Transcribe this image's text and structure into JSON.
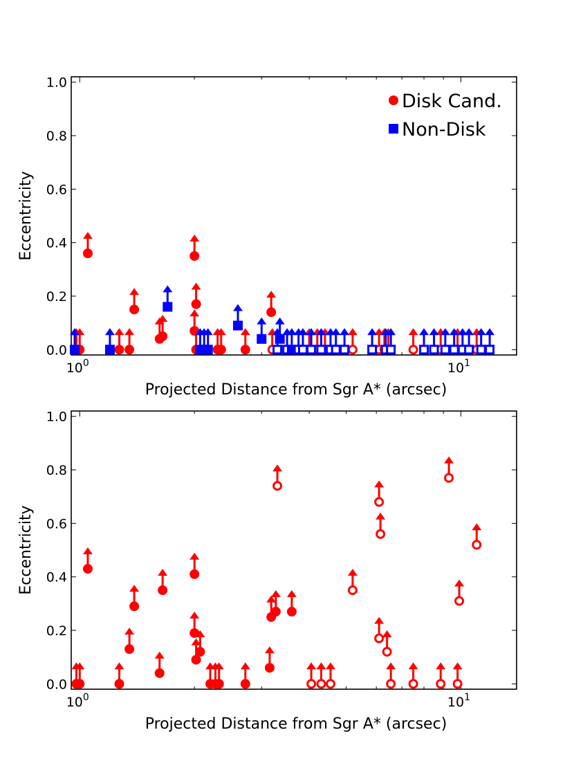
{
  "colors": {
    "disk": "#ff0000",
    "nondisk": "#0000ff"
  },
  "chart_data": [
    {
      "type": "scatter",
      "panel": "top",
      "xscale": "log",
      "xlim": [
        0.95,
        14.0
      ],
      "ylim": [
        -0.02,
        1.02
      ],
      "xlabel": "Projected Distance from Sgr A* (arcsec)",
      "ylabel": "Eccentricity",
      "yticks": [
        "0.0",
        "0.2",
        "0.4",
        "0.6",
        "0.8",
        "1.0"
      ],
      "xticks": [
        {
          "base": "10",
          "exp": "0",
          "value": 1
        },
        {
          "base": "10",
          "exp": "1",
          "value": 10
        }
      ],
      "legend": {
        "position": "top-right",
        "entries": [
          "Disk Cand.",
          "Non-Disk"
        ]
      },
      "series": [
        {
          "name": "Disk Cand.",
          "marker": "circle",
          "color": "#ff0000",
          "points": [
            [
              0.98,
              0.0,
              1
            ],
            [
              1.0,
              0.0,
              1
            ],
            [
              1.05,
              0.36,
              1
            ],
            [
              1.27,
              0.0,
              1
            ],
            [
              1.35,
              0.0,
              1
            ],
            [
              1.39,
              0.15,
              1
            ],
            [
              1.62,
              0.04,
              1
            ],
            [
              1.65,
              0.05,
              1
            ],
            [
              2.0,
              0.35,
              1
            ],
            [
              2.02,
              0.17,
              1
            ],
            [
              2.0,
              0.07,
              1
            ],
            [
              2.02,
              0.0,
              1
            ],
            [
              2.3,
              0.0,
              1
            ],
            [
              2.35,
              0.0,
              1
            ],
            [
              2.72,
              0.0,
              1
            ],
            [
              3.18,
              0.14,
              1
            ],
            [
              3.2,
              0.0,
              0
            ],
            [
              4.0,
              0.0,
              0
            ],
            [
              4.2,
              0.0,
              0
            ],
            [
              4.4,
              0.0,
              0
            ],
            [
              5.2,
              0.0,
              0
            ],
            [
              6.1,
              0.0,
              0
            ],
            [
              6.3,
              0.0,
              0
            ],
            [
              6.45,
              0.0,
              0
            ],
            [
              7.5,
              0.0,
              0
            ],
            [
              8.85,
              0.0,
              0
            ],
            [
              9.8,
              0.0,
              0
            ],
            [
              11.0,
              0.0,
              0
            ]
          ]
        },
        {
          "name": "Non-Disk",
          "marker": "square",
          "color": "#0000ff",
          "points": [
            [
              0.97,
              0.0,
              1
            ],
            [
              1.2,
              0.0,
              1
            ],
            [
              1.7,
              0.16,
              1
            ],
            [
              2.07,
              0.0,
              1
            ],
            [
              2.12,
              0.0,
              1
            ],
            [
              2.17,
              0.0,
              1
            ],
            [
              2.6,
              0.09,
              1
            ],
            [
              3.0,
              0.04,
              1
            ],
            [
              3.3,
              0.0,
              0
            ],
            [
              3.35,
              0.04,
              1
            ],
            [
              3.5,
              0.0,
              0
            ],
            [
              3.6,
              0.0,
              1
            ],
            [
              3.75,
              0.0,
              0
            ],
            [
              3.85,
              0.0,
              0
            ],
            [
              4.05,
              0.0,
              0
            ],
            [
              4.3,
              0.0,
              0
            ],
            [
              4.55,
              0.0,
              0
            ],
            [
              4.7,
              0.0,
              0
            ],
            [
              4.95,
              0.0,
              0
            ],
            [
              5.85,
              0.0,
              0
            ],
            [
              6.35,
              0.0,
              0
            ],
            [
              6.55,
              0.0,
              0
            ],
            [
              8.0,
              0.0,
              0
            ],
            [
              8.5,
              0.0,
              0
            ],
            [
              9.1,
              0.0,
              0
            ],
            [
              9.6,
              0.0,
              0
            ],
            [
              10.1,
              0.0,
              0
            ],
            [
              10.5,
              0.0,
              0
            ],
            [
              11.3,
              0.0,
              0
            ],
            [
              11.9,
              0.0,
              0
            ]
          ]
        }
      ]
    },
    {
      "type": "scatter",
      "panel": "bottom",
      "xscale": "log",
      "xlim": [
        0.95,
        14.0
      ],
      "ylim": [
        -0.02,
        1.02
      ],
      "xlabel": "Projected Distance from Sgr A* (arcsec)",
      "ylabel": "Eccentricity",
      "yticks": [
        "0.0",
        "0.2",
        "0.4",
        "0.6",
        "0.8",
        "1.0"
      ],
      "xticks": [
        {
          "base": "10",
          "exp": "0",
          "value": 1
        },
        {
          "base": "10",
          "exp": "1",
          "value": 10
        }
      ],
      "series": [
        {
          "name": "Disk Cand.",
          "marker": "circle",
          "color": "#ff0000",
          "points": [
            [
              0.98,
              0.0,
              1
            ],
            [
              1.0,
              0.0,
              1
            ],
            [
              1.05,
              0.43,
              1
            ],
            [
              1.27,
              0.0,
              1
            ],
            [
              1.35,
              0.13,
              1
            ],
            [
              1.39,
              0.29,
              1
            ],
            [
              1.62,
              0.04,
              1
            ],
            [
              1.65,
              0.35,
              1
            ],
            [
              2.0,
              0.41,
              1
            ],
            [
              2.0,
              0.19,
              1
            ],
            [
              2.02,
              0.09,
              1
            ],
            [
              2.07,
              0.12,
              1
            ],
            [
              2.2,
              0.0,
              1
            ],
            [
              2.27,
              0.0,
              1
            ],
            [
              2.32,
              0.0,
              1
            ],
            [
              2.72,
              0.0,
              1
            ],
            [
              3.15,
              0.06,
              1
            ],
            [
              3.18,
              0.25,
              1
            ],
            [
              3.27,
              0.27,
              1
            ],
            [
              3.3,
              0.74,
              0
            ],
            [
              3.6,
              0.27,
              1
            ],
            [
              4.05,
              0.0,
              0
            ],
            [
              4.3,
              0.0,
              0
            ],
            [
              4.55,
              0.0,
              0
            ],
            [
              5.2,
              0.35,
              0
            ],
            [
              6.1,
              0.68,
              0
            ],
            [
              6.15,
              0.56,
              0
            ],
            [
              6.1,
              0.17,
              0
            ],
            [
              6.4,
              0.12,
              0
            ],
            [
              6.55,
              0.0,
              0
            ],
            [
              7.5,
              0.0,
              0
            ],
            [
              8.85,
              0.0,
              0
            ],
            [
              9.3,
              0.77,
              0
            ],
            [
              9.9,
              0.31,
              0
            ],
            [
              9.8,
              0.0,
              0
            ],
            [
              11.0,
              0.52,
              0
            ]
          ]
        }
      ]
    }
  ]
}
